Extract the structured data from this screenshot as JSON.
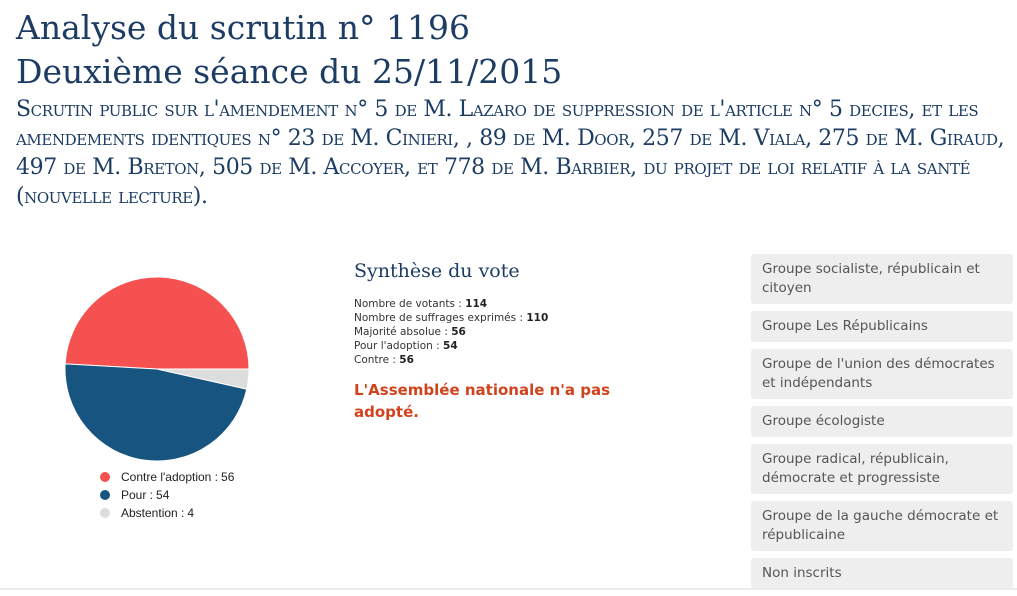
{
  "header": {
    "title_line1": "Analyse du scrutin n° 1196",
    "title_line2": "Deuxième séance du 25/11/2015",
    "description": "Scrutin public sur l'amendement n° 5 de M. Lazaro de suppression de l'article n° 5 decies, et les amendements identiques n° 23 de M. Cinieri, , 89 de M. Door, 257 de M. Viala, 275 de M. Giraud, 497 de M. Breton, 505 de M. Accoyer, et 778 de M. Barbier, du projet de loi relatif à la santé (nouvelle lecture)."
  },
  "chart_data": {
    "type": "pie",
    "categories": [
      "Contre l'adoption",
      "Pour",
      "Abstention"
    ],
    "values": [
      56,
      54,
      4
    ],
    "colors": [
      "#f55150",
      "#175580",
      "#dddddd"
    ],
    "legend": [
      "Contre l'adoption :",
      "Pour :",
      "Abstention :"
    ],
    "legend_position": "bottom"
  },
  "synthese": {
    "title": "Synthèse du vote",
    "stats": [
      {
        "label": "Nombre de votants :",
        "value": "114"
      },
      {
        "label": "Nombre de suffrages exprimés :",
        "value": "110"
      },
      {
        "label": "Majorité absolue :",
        "value": "56"
      },
      {
        "label": "Pour l'adoption :",
        "value": "54"
      },
      {
        "label": "Contre :",
        "value": "56"
      }
    ],
    "result": "L'Assemblée nationale n'a pas adopté."
  },
  "groups": [
    "Groupe socialiste, républicain et citoyen",
    "Groupe Les Républicains",
    "Groupe de l'union des démocrates et indépendants",
    "Groupe écologiste",
    "Groupe radical, républicain, démocrate et progressiste",
    "Groupe de la gauche démocrate et républicaine",
    "Non inscrits"
  ]
}
